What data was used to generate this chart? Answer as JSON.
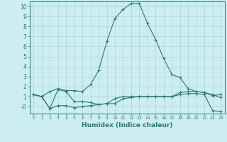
{
  "xlabel": "Humidex (Indice chaleur)",
  "bg_color": "#cceef0",
  "grid_color": "#aad4d8",
  "line_color": "#2a7a6a",
  "xlim": [
    -0.5,
    23.5
  ],
  "ylim": [
    -0.7,
    10.5
  ],
  "series1_x": [
    0,
    1,
    2,
    3,
    4,
    5,
    6,
    7,
    8,
    9,
    10,
    11,
    12,
    13,
    14,
    15,
    16,
    17,
    18,
    19,
    20,
    21,
    22,
    23
  ],
  "series1_y": [
    1.2,
    1.0,
    1.5,
    1.8,
    1.6,
    1.6,
    1.5,
    2.2,
    3.6,
    6.5,
    8.8,
    9.7,
    10.3,
    10.3,
    8.3,
    6.7,
    4.8,
    3.2,
    2.9,
    1.8,
    1.5,
    1.4,
    1.2,
    0.9
  ],
  "series2_x": [
    0,
    1,
    2,
    3,
    4,
    5,
    6,
    7,
    8,
    9,
    10,
    11,
    12,
    13,
    14,
    15,
    16,
    17,
    18,
    19,
    20,
    21,
    22,
    23
  ],
  "series2_y": [
    1.2,
    1.0,
    -0.2,
    1.7,
    1.5,
    0.5,
    0.5,
    0.4,
    0.2,
    0.3,
    0.8,
    1.0,
    1.0,
    1.0,
    1.0,
    1.0,
    1.0,
    1.0,
    1.4,
    1.5,
    1.5,
    1.4,
    1.1,
    1.2
  ],
  "series3_x": [
    0,
    1,
    2,
    3,
    4,
    5,
    6,
    7,
    8,
    9,
    10,
    11,
    12,
    13,
    14,
    15,
    16,
    17,
    18,
    19,
    20,
    21,
    22,
    23
  ],
  "series3_y": [
    1.2,
    1.0,
    -0.2,
    0.1,
    0.1,
    -0.1,
    0.0,
    0.1,
    0.2,
    0.3,
    0.3,
    0.8,
    0.9,
    1.0,
    1.0,
    1.0,
    1.0,
    1.0,
    1.2,
    1.3,
    1.3,
    1.2,
    -0.4,
    -0.5
  ]
}
